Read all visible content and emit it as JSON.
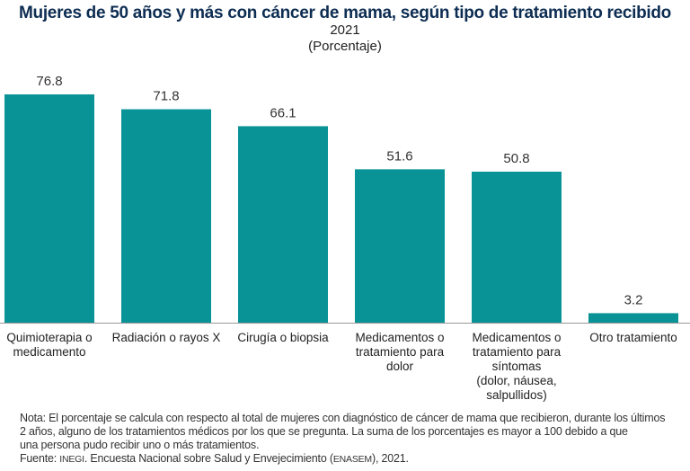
{
  "chart_data": {
    "type": "bar",
    "title": "Mujeres de 50 años y más con cáncer de mama, según tipo de tratamiento recibido",
    "subtitle": "2021",
    "unit": "(Porcentaje)",
    "categories": [
      [
        "Quimioterapia o",
        "medicamento"
      ],
      [
        "Radiación o rayos X"
      ],
      [
        "Cirugía o biopsia"
      ],
      [
        "Medicamentos o",
        "tratamiento para",
        "dolor"
      ],
      [
        "Medicamentos o",
        "tratamiento para",
        "síntomas",
        "(dolor, náusea,",
        "salpullidos)"
      ],
      [
        "Otro tratamiento"
      ]
    ],
    "values": [
      76.8,
      71.8,
      66.1,
      51.6,
      50.8,
      3.2
    ],
    "value_labels": [
      "76.8",
      "71.8",
      "66.1",
      "51.6",
      "50.8",
      "3.2"
    ],
    "ylim": [
      0,
      80
    ],
    "grid": false,
    "bar_color": "#0a9396"
  },
  "footer": {
    "note_lines": [
      "Nota: El porcentaje se calcula con respecto al total de mujeres con diagnóstico de cáncer de mama que recibieron, durante los últimos",
      "2 años, alguno de los tratamientos médicos por los que se pregunta. La suma de los porcentajes es mayor a 100 debido a que",
      "una persona pudo recibir uno o más tratamientos."
    ],
    "source_prefix": "Fuente: ",
    "source_org": "INEGI",
    "source_mid": ". Encuesta Nacional sobre Salud y Envejecimiento (",
    "source_abbr": "ENASEM",
    "source_end": "), 2021."
  }
}
